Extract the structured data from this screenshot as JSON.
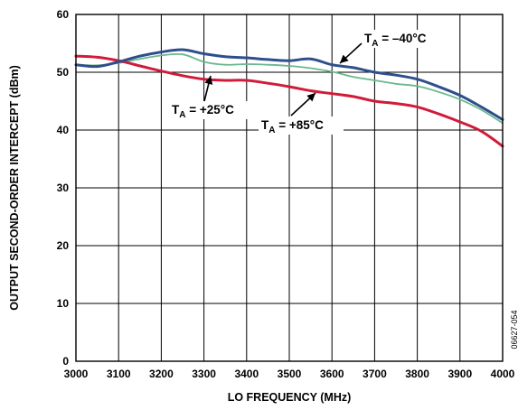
{
  "chart_data": {
    "type": "line",
    "xlabel": "LO FREQUENCY (MHz)",
    "ylabel": "OUTPUT SECOND-ORDER INTERCEPT (dBm)",
    "xlim": [
      3000,
      4000
    ],
    "ylim": [
      0,
      60
    ],
    "x_ticks": [
      "3000",
      "3100",
      "3200",
      "3300",
      "3400",
      "3500",
      "3600",
      "3700",
      "3800",
      "3900",
      "4000"
    ],
    "y_ticks": [
      "0",
      "10",
      "20",
      "30",
      "40",
      "50",
      "60"
    ],
    "grid": true,
    "figure_id": "06627-054",
    "series": [
      {
        "name": "T_A = –40°C",
        "color": "#2e4f8c",
        "x": [
          3000,
          3050,
          3100,
          3150,
          3200,
          3250,
          3300,
          3350,
          3400,
          3450,
          3500,
          3550,
          3600,
          3650,
          3700,
          3750,
          3800,
          3850,
          3900,
          3950,
          4000
        ],
        "y": [
          51.3,
          51.0,
          51.8,
          52.8,
          53.5,
          53.9,
          53.2,
          52.7,
          52.5,
          52.2,
          52.0,
          52.3,
          51.3,
          50.8,
          50.0,
          49.5,
          48.8,
          47.5,
          46.0,
          44.0,
          41.8
        ]
      },
      {
        "name": "T_A = +25°C",
        "color": "#6ab88f",
        "x": [
          3000,
          3050,
          3100,
          3150,
          3200,
          3250,
          3300,
          3350,
          3400,
          3450,
          3500,
          3550,
          3600,
          3650,
          3700,
          3750,
          3800,
          3850,
          3900,
          3950,
          4000
        ],
        "y": [
          51.3,
          51.2,
          51.6,
          52.3,
          52.9,
          53.1,
          51.8,
          51.3,
          51.4,
          51.3,
          51.1,
          50.7,
          50.1,
          49.2,
          48.6,
          48.0,
          47.6,
          46.6,
          45.3,
          43.5,
          41.2
        ]
      },
      {
        "name": "T_A = +85°C",
        "color": "#d01c3a",
        "x": [
          3000,
          3050,
          3100,
          3150,
          3200,
          3250,
          3300,
          3350,
          3400,
          3450,
          3500,
          3550,
          3600,
          3650,
          3700,
          3750,
          3800,
          3850,
          3900,
          3950,
          4000
        ],
        "y": [
          52.8,
          52.6,
          52.0,
          51.1,
          50.2,
          49.4,
          48.8,
          48.6,
          48.6,
          48.1,
          47.5,
          46.8,
          46.3,
          45.8,
          45.0,
          44.6,
          44.0,
          42.8,
          41.4,
          39.8,
          37.2
        ]
      }
    ],
    "annotations": [
      {
        "label": "T_A = –40°C",
        "text": "T",
        "sub": "A",
        "rest": " = –40°C"
      },
      {
        "label": "T_A = +25°C",
        "text": "T",
        "sub": "A",
        "rest": " = +25°C"
      },
      {
        "label": "T_A = +85°C",
        "text": "T",
        "sub": "A",
        "rest": " = +85°C"
      }
    ]
  }
}
